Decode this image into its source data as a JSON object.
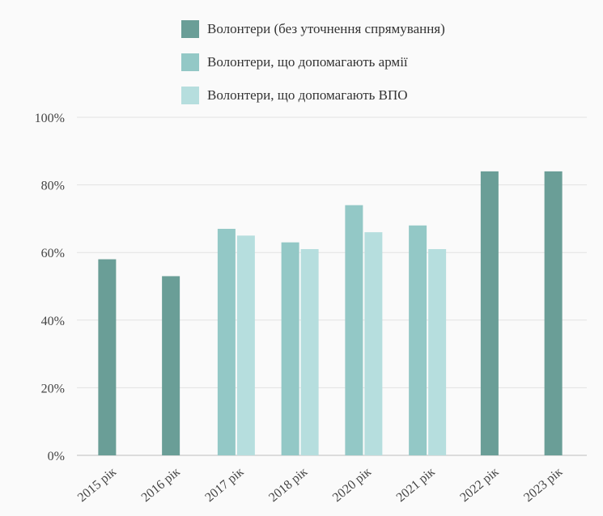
{
  "chart_data": {
    "type": "bar",
    "categories": [
      "2015 рік",
      "2016 рік",
      "2017 рік",
      "2018 рік",
      "2020 рік",
      "2021 рік",
      "2022 рік",
      "2023 рік"
    ],
    "series": [
      {
        "name": "Волонтери (без уточнення спрямування)",
        "color": "#6a9e97",
        "values": [
          58,
          53,
          null,
          null,
          null,
          null,
          84,
          84
        ]
      },
      {
        "name": "Волонтери, що допомагають армії",
        "color": "#93c8c6",
        "values": [
          null,
          null,
          67,
          63,
          74,
          68,
          null,
          null
        ]
      },
      {
        "name": "Волонтери, що допомагають ВПО",
        "color": "#b6dede",
        "values": [
          null,
          null,
          65,
          61,
          66,
          61,
          null,
          null
        ]
      }
    ],
    "yticks": [
      "0%",
      "20%",
      "40%",
      "60%",
      "80%",
      "100%"
    ],
    "ylim": [
      0,
      100
    ],
    "grid": true,
    "legend_position": "top"
  }
}
